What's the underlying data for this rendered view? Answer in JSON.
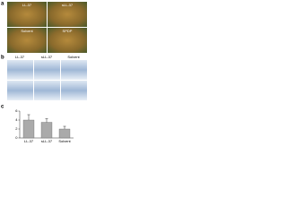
{
  "panel_a": {
    "label": "a",
    "images": [
      "LL-37",
      "sLL-37",
      "Solvent",
      "SPDP"
    ]
  },
  "panel_b": {
    "label": "b",
    "columns": [
      "LL-37",
      "sLL-37",
      "Solvent"
    ]
  },
  "panel_c": {
    "label": "c"
  },
  "chart_data": {
    "type": "bar",
    "categories": [
      "LL-37",
      "sLL-37",
      "Solvent"
    ],
    "values": [
      4,
      3.5,
      2
    ],
    "errors": [
      1.2,
      0.8,
      0.6
    ],
    "color": "#aaaaaa",
    "ylim": [
      0,
      6
    ],
    "yticks": [
      0,
      2,
      4,
      6
    ]
  }
}
